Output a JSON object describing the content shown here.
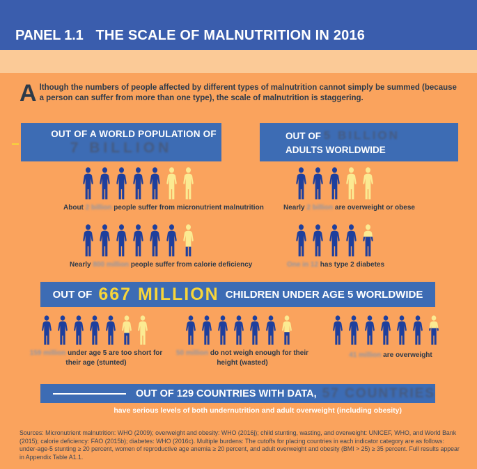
{
  "colors": {
    "header_blue": "#3a5dad",
    "box_blue": "#3d6cb4",
    "bg_orange": "#faa35d",
    "peach_band": "#fbca97",
    "icon_blue": "#1e3f9d",
    "icon_yellow": "#fbea92",
    "navy_accent": "#46597c",
    "banner_yellow": "#f7d53a",
    "text_dark": "#2e3a49"
  },
  "header": {
    "panel_label": "PANEL 1.1",
    "title": "THE SCALE OF MALNUTRITION IN 2016"
  },
  "intro": {
    "dropcap": "A",
    "text": "lthough the numbers of people affected by different types of malnutrition cannot simply be summed (because a person can suffer from more than one type), the scale of malnutrition is staggering."
  },
  "boxes": {
    "world": {
      "line1": "OUT OF A WORLD POPULATION OF",
      "line2": "7 BILLION"
    },
    "adults": {
      "line1_prefix": "OUT OF",
      "line1_number": "5 BILLION",
      "line2": "ADULTS WORLDWIDE"
    }
  },
  "groups": [
    {
      "id": "micronutrient-malnutrition",
      "fills": [
        "b",
        "b",
        "b",
        "b",
        "b",
        "y",
        "y"
      ],
      "caption": {
        "prefix": "About",
        "number": "2 billion",
        "suffix": "people suffer from micronutrient malnutrition"
      }
    },
    {
      "id": "adult-overweight",
      "fills": [
        "b",
        "b",
        "b",
        "y",
        "y"
      ],
      "caption": {
        "prefix": "Nearly",
        "number": "2 billion",
        "suffix": "are overweight or obese"
      }
    },
    {
      "id": "calorie-deficiency",
      "fills": [
        "b",
        "b",
        "b",
        "b",
        "b",
        "b",
        "s68"
      ],
      "caption": {
        "prefix": "Nearly",
        "number": "800 million",
        "suffix": "people suffer from calorie deficiency"
      }
    },
    {
      "id": "type-2-diabetes",
      "fills": [
        "b",
        "b",
        "b",
        "b",
        "s38"
      ],
      "caption": {
        "prefix": "",
        "number": "One in 12",
        "suffix": "has type 2 diabetes"
      }
    },
    {
      "id": "children-stunted",
      "fills": [
        "b",
        "b",
        "b",
        "b",
        "b",
        "s58",
        "y"
      ],
      "caption": {
        "prefix": "",
        "number": "159 million",
        "suffix": "under age 5 are too short for their age (stunted)"
      }
    },
    {
      "id": "children-wasted",
      "fills": [
        "b",
        "b",
        "b",
        "b",
        "b",
        "b",
        "s55"
      ],
      "caption": {
        "prefix": "",
        "number": "50 million",
        "suffix": "do not weigh enough for their height (wasted)"
      }
    },
    {
      "id": "children-overweight",
      "fills": [
        "b",
        "b",
        "b",
        "b",
        "b",
        "b",
        "s42"
      ],
      "caption": {
        "prefix": "",
        "number": "41 million",
        "suffix": "are overweight"
      }
    }
  ],
  "children_banner": {
    "prefix": "OUT OF",
    "number": "667 MILLION",
    "suffix": "CHILDREN UNDER AGE 5 WORLDWIDE"
  },
  "countries_banner": {
    "prefix": "OUT OF 129 COUNTRIES WITH DATA,",
    "number": "57 COUNTRIES",
    "subline": "have serious levels of both undernutrition and adult overweight (including obesity)"
  },
  "sources": "Sources: Micronutrient malnutrition: WHO (2009); overweight and obesity: WHO (2016j); child stunting, wasting, and overweight: UNICEF, WHO, and World Bank (2015); calorie deficiency: FAO (2015b); diabetes: WHO (2016c). Multiple burdens: The cutoffs for placing countries in each indicator category are as follows: under-age-5 stunting ≥ 20 percent, women of reproductive age anemia ≥ 20 percent, and adult overweight and obesity (BMI > 25) ≥ 35 percent. Full results appear in Appendix Table A1.1."
}
